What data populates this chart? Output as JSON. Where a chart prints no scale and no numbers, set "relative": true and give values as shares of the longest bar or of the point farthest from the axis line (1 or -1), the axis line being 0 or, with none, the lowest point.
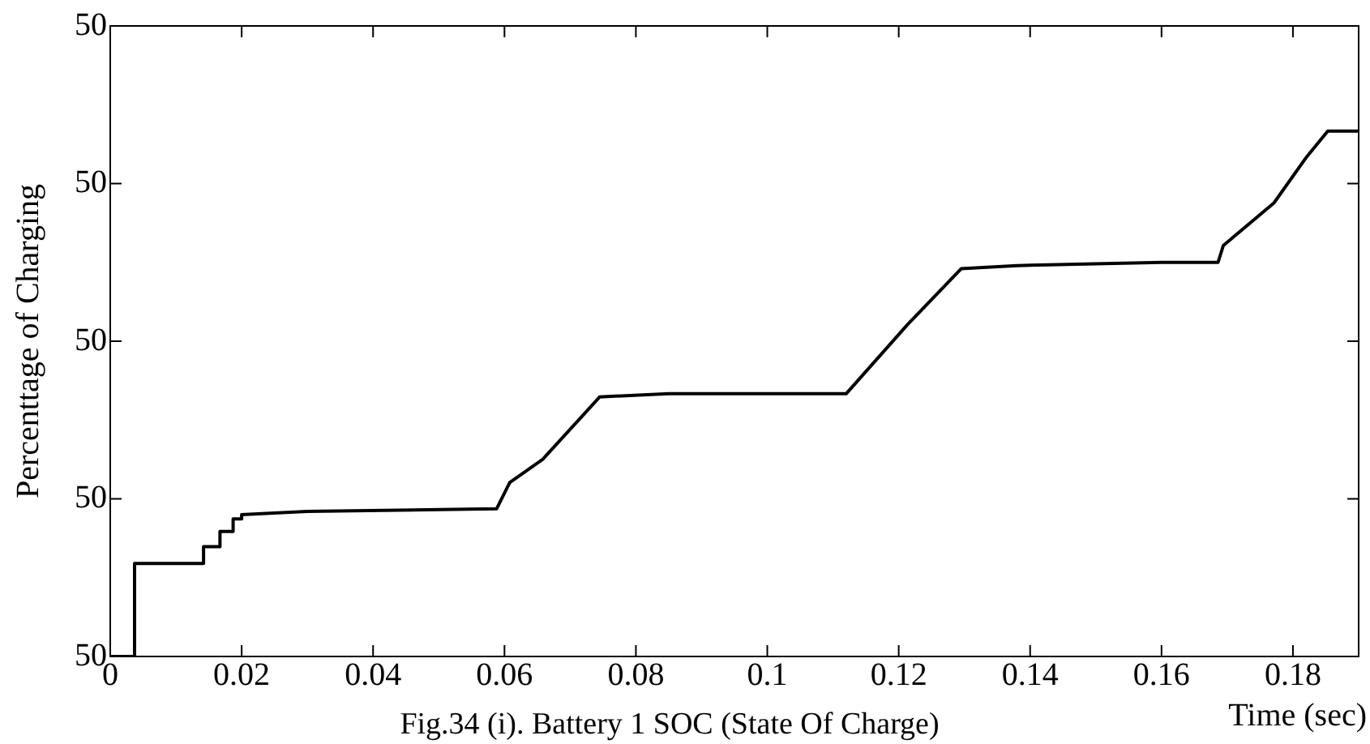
{
  "chart_data": {
    "type": "line",
    "relative": true,
    "xlabel": "Time (sec)",
    "ylabel": "Percenttage of Charging",
    "annotations": [
      "Fig.34 (i). Battery 1 SOC (State Of Charge)",
      "50",
      "50",
      "50",
      "50",
      "50"
    ],
    "x": [
      0,
      0.0037,
      0.0037,
      0.0142,
      0.0142,
      0.0167,
      0.0167,
      0.0187,
      0.0187,
      0.02,
      0.02,
      0.03,
      0.0588,
      0.0608,
      0.0658,
      0.0745,
      0.085,
      0.112,
      0.1213,
      0.1295,
      0.138,
      0.16,
      0.1686,
      0.1694,
      0.1771,
      0.1821,
      0.1853,
      0.19
    ],
    "series": [
      {
        "color": "#000000",
        "values": [
          0,
          0,
          0.177,
          0.177,
          0.209,
          0.209,
          0.238,
          0.238,
          0.262,
          0.262,
          0.27,
          0.276,
          0.281,
          0.331,
          0.375,
          0.494,
          0.5,
          0.5,
          0.631,
          0.738,
          0.744,
          0.75,
          0.75,
          0.782,
          0.863,
          0.951,
          1,
          1
        ]
      }
    ],
    "xlim": [
      0,
      0.19
    ],
    "xticks": [
      0,
      0.02,
      0.04,
      0.06,
      0.08,
      0.1,
      0.12,
      0.14,
      0.16,
      0.18
    ],
    "grid": false,
    "legend": false,
    "marker": "none",
    "line_style": "solid"
  }
}
